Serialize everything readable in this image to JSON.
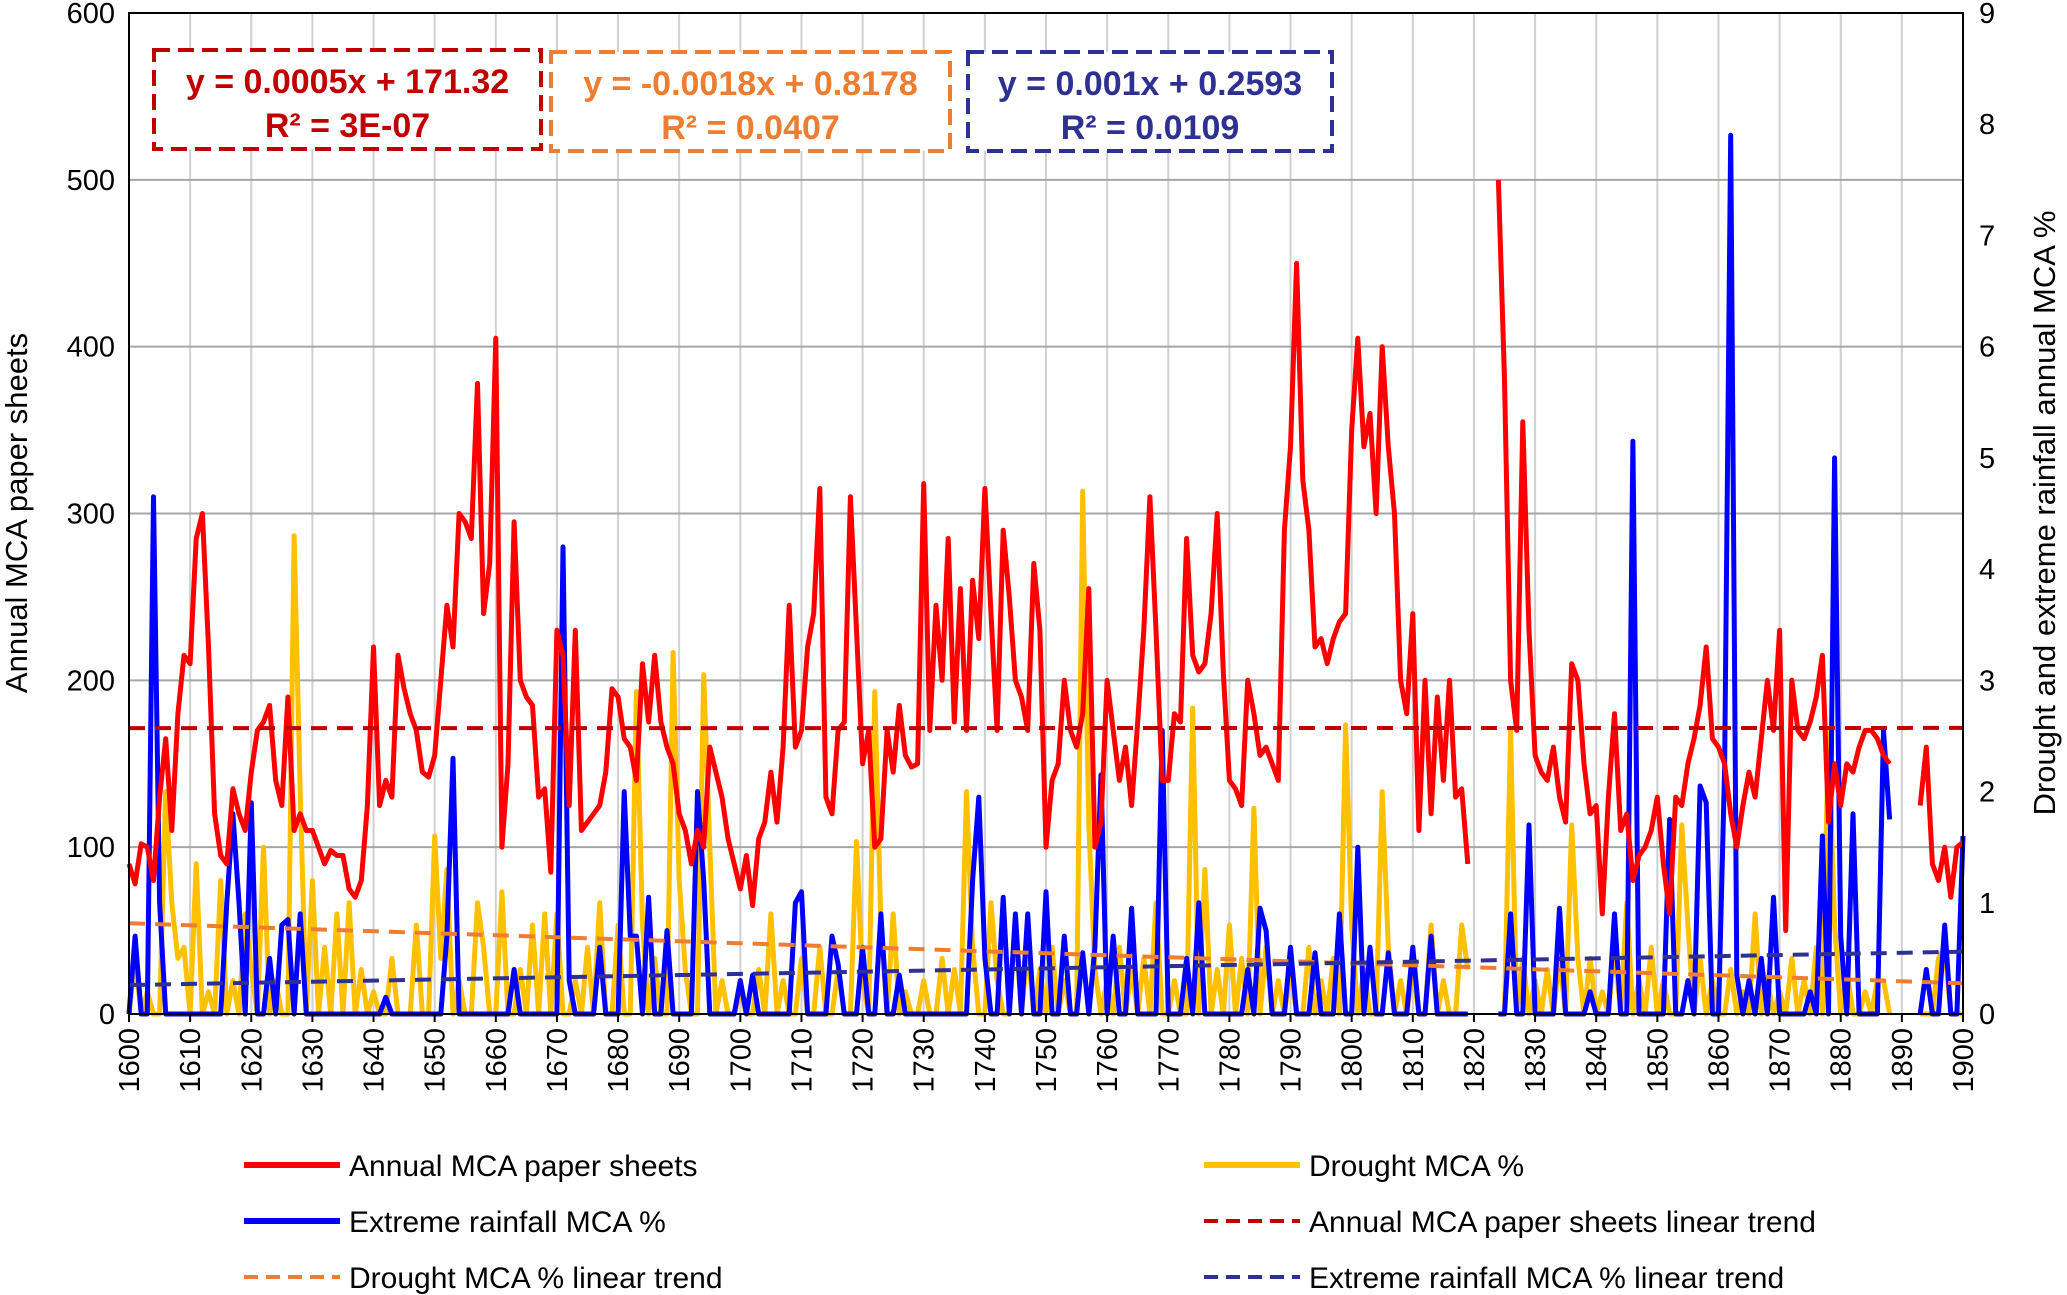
{
  "chart_data": {
    "type": "line",
    "title": "",
    "xlabel": "",
    "ylabel": "Annual MCA paper sheets",
    "y2label": "Drought and extreme rainfall annual MCA %",
    "xlim": [
      1600,
      1900
    ],
    "ylim": [
      0,
      600
    ],
    "y2lim": [
      0,
      9
    ],
    "x_ticks": [
      "1600",
      "1610",
      "1620",
      "1630",
      "1640",
      "1650",
      "1660",
      "1670",
      "1680",
      "1690",
      "1700",
      "1710",
      "1720",
      "1730",
      "1740",
      "1750",
      "1760",
      "1770",
      "1780",
      "1790",
      "1800",
      "1810",
      "1820",
      "1830",
      "1840",
      "1850",
      "1860",
      "1870",
      "1880",
      "1890",
      "1900"
    ],
    "y_ticks": [
      "0",
      "100",
      "200",
      "300",
      "400",
      "500",
      "600"
    ],
    "y2_ticks": [
      "0",
      "1",
      "2",
      "3",
      "4",
      "5",
      "6",
      "7",
      "8",
      "9"
    ],
    "grid": true,
    "legend_position": "bottom",
    "colors": {
      "annual": "#ff0000",
      "drought": "#ffc000",
      "rainfall": "#0000ff",
      "annual_trend": "#c00000",
      "drought_trend": "#ed7d31",
      "rainfall_trend": "#2e3192"
    },
    "missing_years": [
      1820,
      1821,
      1822,
      1823,
      1889,
      1890,
      1891,
      1892
    ],
    "series": [
      {
        "name": "Annual MCA paper sheets",
        "axis": "left",
        "start_year": 1600,
        "values": [
          90,
          78,
          102,
          100,
          80,
          130,
          165,
          110,
          180,
          215,
          210,
          285,
          300,
          220,
          120,
          95,
          90,
          135,
          120,
          110,
          145,
          170,
          175,
          185,
          140,
          125,
          190,
          110,
          120,
          110,
          110,
          100,
          90,
          98,
          95,
          95,
          75,
          70,
          80,
          125,
          220,
          125,
          140,
          130,
          215,
          195,
          180,
          170,
          145,
          142,
          155,
          200,
          245,
          220,
          300,
          295,
          285,
          378,
          240,
          270,
          405,
          100,
          150,
          295,
          200,
          190,
          185,
          130,
          135,
          85,
          230,
          215,
          125,
          230,
          110,
          115,
          120,
          125,
          145,
          195,
          190,
          165,
          160,
          140,
          210,
          175,
          215,
          175,
          160,
          150,
          120,
          110,
          90,
          110,
          100,
          160,
          145,
          130,
          105,
          90,
          75,
          95,
          65,
          105,
          115,
          145,
          115,
          160,
          245,
          160,
          170,
          220,
          240,
          315,
          130,
          120,
          170,
          175,
          310,
          230,
          150,
          170,
          100,
          105,
          170,
          145,
          185,
          155,
          148,
          150,
          318,
          170,
          245,
          200,
          285,
          175,
          255,
          170,
          260,
          225,
          315,
          240,
          170,
          290,
          250,
          200,
          190,
          170,
          270,
          230,
          100,
          140,
          150,
          200,
          170,
          160,
          180,
          255,
          100,
          115,
          200,
          170,
          140,
          160,
          125,
          175,
          230,
          310,
          230,
          140,
          140,
          180,
          175,
          285,
          215,
          205,
          210,
          240,
          300,
          205,
          140,
          135,
          125,
          200,
          180,
          155,
          160,
          150,
          140,
          290,
          340,
          450,
          320,
          290,
          220,
          225,
          210,
          225,
          235,
          240,
          350,
          405,
          340,
          360,
          300,
          400,
          340,
          300,
          200,
          180,
          240,
          110,
          200,
          120,
          190,
          140,
          200,
          130,
          135,
          90,
          null,
          null,
          null,
          null,
          500,
          380,
          200,
          170,
          355,
          230,
          155,
          145,
          140,
          160,
          130,
          115,
          210,
          200,
          150,
          120,
          125,
          60,
          130,
          180,
          110,
          120,
          80,
          95,
          100,
          110,
          130,
          90,
          60,
          130,
          125,
          150,
          165,
          185,
          220,
          165,
          160,
          150,
          120,
          100,
          125,
          145,
          130,
          165,
          200,
          170,
          230,
          50,
          200,
          170,
          165,
          175,
          190,
          215,
          115,
          150,
          125,
          150,
          145,
          160,
          170,
          170,
          165,
          155,
          150,
          null,
          null,
          null,
          null,
          125,
          160,
          90,
          80,
          100,
          70,
          100,
          103
        ]
      },
      {
        "name": "Drought MCA %",
        "axis": "right",
        "default": 0,
        "values_by_year": {
          "1601": 0.5,
          "1603": 0.2,
          "1606": 2.0,
          "1607": 1.0,
          "1608": 0.5,
          "1609": 0.6,
          "1611": 1.35,
          "1613": 0.2,
          "1615": 1.2,
          "1617": 0.3,
          "1619": 0.9,
          "1620": 0.4,
          "1622": 1.5,
          "1624": 0.3,
          "1627": 4.3,
          "1628": 2.0,
          "1630": 1.2,
          "1632": 0.6,
          "1634": 0.9,
          "1636": 1.0,
          "1638": 0.4,
          "1640": 0.2,
          "1643": 0.5,
          "1647": 0.8,
          "1650": 1.6,
          "1651": 0.5,
          "1652": 1.3,
          "1654": 0.3,
          "1657": 1.0,
          "1658": 0.6,
          "1661": 1.1,
          "1664": 0.4,
          "1666": 0.8,
          "1668": 0.9,
          "1670": 0.9,
          "1673": 0.3,
          "1675": 0.6,
          "1677": 1.0,
          "1680": 0.8,
          "1683": 2.9,
          "1684": 0.8,
          "1686": 0.5,
          "1689": 3.25,
          "1690": 1.2,
          "1691": 0.4,
          "1694": 3.05,
          "1695": 1.5,
          "1697": 0.3,
          "1700": 0.2,
          "1703": 0.4,
          "1705": 0.9,
          "1707": 0.3,
          "1710": 0.5,
          "1713": 0.6,
          "1716": 0.4,
          "1719": 1.55,
          "1720": 0.3,
          "1722": 2.9,
          "1723": 0.8,
          "1725": 0.9,
          "1727": 0.2,
          "1730": 0.3,
          "1733": 0.5,
          "1735": 0.4,
          "1737": 2.0,
          "1738": 0.6,
          "1741": 1.0,
          "1742": 0.3,
          "1745": 0.8,
          "1747": 0.6,
          "1749": 0.4,
          "1751": 0.6,
          "1753": 0.3,
          "1756": 4.7,
          "1757": 1.7,
          "1758": 0.4,
          "1760": 0.3,
          "1762": 0.6,
          "1764": 0.4,
          "1766": 0.5,
          "1768": 1.0,
          "1771": 0.3,
          "1774": 2.75,
          "1776": 1.3,
          "1778": 0.4,
          "1780": 0.8,
          "1782": 0.5,
          "1784": 1.85,
          "1786": 0.6,
          "1788": 0.3,
          "1790": 0.4,
          "1793": 0.6,
          "1795": 0.3,
          "1797": 0.5,
          "1799": 2.6,
          "1800": 0.8,
          "1802": 0.4,
          "1805": 2.0,
          "1806": 0.6,
          "1808": 0.3,
          "1810": 0.4,
          "1813": 0.8,
          "1815": 0.3,
          "1818": 0.8,
          "1819": 0.4,
          "1826": 2.55,
          "1828": 0.5,
          "1830": 0.3,
          "1832": 0.4,
          "1834": 0.5,
          "1836": 1.7,
          "1837": 0.5,
          "1839": 0.5,
          "1841": 0.2,
          "1843": 0.6,
          "1845": 1.0,
          "1847": 0.3,
          "1849": 0.6,
          "1851": 0.3,
          "1854": 1.7,
          "1855": 0.8,
          "1857": 0.5,
          "1859": 0.3,
          "1862": 0.4,
          "1864": 0.2,
          "1866": 0.9,
          "1868": 0.3,
          "1870": 0.2,
          "1872": 0.5,
          "1874": 0.3,
          "1876": 0.6,
          "1878": 2.55,
          "1879": 0.8,
          "1881": 0.4,
          "1884": 0.2,
          "1886": 0.3,
          "1887": 0.3,
          "1896": 0.5,
          "1897": 0.6
        }
      },
      {
        "name": "Extreme rainfall MCA %",
        "axis": "right",
        "default": 0,
        "values_by_year": {
          "1601": 0.7,
          "1604": 4.65,
          "1605": 1.0,
          "1616": 1.0,
          "1617": 1.8,
          "1618": 1.0,
          "1620": 1.9,
          "1623": 0.5,
          "1625": 0.8,
          "1626": 0.85,
          "1628": 0.9,
          "1642": 0.15,
          "1652": 0.7,
          "1653": 2.3,
          "1663": 0.4,
          "1671": 4.2,
          "1672": 0.3,
          "1677": 0.6,
          "1681": 2.0,
          "1682": 0.7,
          "1683": 0.7,
          "1685": 1.05,
          "1688": 0.75,
          "1693": 2.0,
          "1694": 1.2,
          "1700": 0.3,
          "1702": 0.35,
          "1709": 1.0,
          "1710": 1.1,
          "1715": 0.7,
          "1716": 0.45,
          "1720": 0.6,
          "1723": 0.9,
          "1726": 0.35,
          "1738": 1.2,
          "1739": 1.95,
          "1740": 0.5,
          "1743": 1.05,
          "1745": 0.9,
          "1747": 0.9,
          "1750": 1.1,
          "1753": 0.7,
          "1756": 0.55,
          "1758": 0.6,
          "1759": 2.15,
          "1761": 0.7,
          "1764": 0.95,
          "1769": 2.55,
          "1773": 0.5,
          "1775": 1.0,
          "1783": 0.4,
          "1785": 0.95,
          "1786": 0.75,
          "1790": 0.6,
          "1794": 0.55,
          "1798": 0.9,
          "1801": 1.5,
          "1803": 0.6,
          "1806": 0.55,
          "1810": 0.6,
          "1813": 0.7,
          "1826": 0.9,
          "1829": 1.7,
          "1834": 0.95,
          "1839": 0.2,
          "1843": 0.9,
          "1846": 5.15,
          "1852": 1.75,
          "1855": 0.3,
          "1857": 2.05,
          "1858": 1.9,
          "1861": 2.2,
          "1862": 7.9,
          "1863": 0.35,
          "1865": 0.3,
          "1867": 0.5,
          "1869": 1.05,
          "1875": 0.2,
          "1877": 1.6,
          "1879": 5.0,
          "1880": 0.7,
          "1882": 1.8,
          "1887": 2.55,
          "1888": 1.75,
          "1894": 0.4,
          "1897": 0.8,
          "1900": 1.6
        }
      }
    ],
    "trendlines": [
      {
        "name": "Annual MCA paper sheets linear trend",
        "axis": "left",
        "slope": 0.0005,
        "intercept": 171.32,
        "equation": "y = 0.0005x + 171.32",
        "r2": "R² = 3E-07"
      },
      {
        "name": "Drought MCA % linear trend",
        "axis": "right",
        "slope": -0.0018,
        "intercept": 0.8178,
        "equation": "y = -0.0018x + 0.8178",
        "r2": "R² = 0.0407"
      },
      {
        "name": "Extreme rainfall MCA % linear trend",
        "axis": "right",
        "slope": 0.001,
        "intercept": 0.2593,
        "equation": "y = 0.001x + 0.2593",
        "r2": "R² = 0.0109"
      }
    ],
    "legend": [
      "Annual MCA paper sheets",
      "Drought MCA %",
      "Extreme rainfall MCA %",
      "Annual MCA paper sheets linear trend",
      "Drought MCA % linear trend",
      "Extreme rainfall MCA % linear trend"
    ]
  }
}
